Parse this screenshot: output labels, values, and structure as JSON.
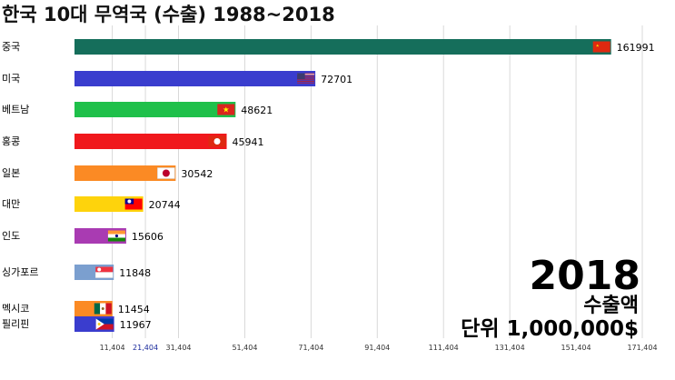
{
  "chart_data": {
    "type": "bar",
    "orientation": "horizontal",
    "title": "한국 10대 무역국 (수출) 1988~2018",
    "year": "2018",
    "metric": "수출액",
    "unit": "단위 1,000,000$",
    "categories": [
      "중국",
      "미국",
      "베트남",
      "홍콩",
      "일본",
      "대만",
      "인도",
      "싱가포르",
      "멕시코",
      "필리핀"
    ],
    "values": [
      161991,
      72701,
      48621,
      45941,
      30542,
      20744,
      15606,
      11848,
      11454,
      11967
    ],
    "bar_colors": [
      "#156e5b",
      "#3a3dce",
      "#1fc04a",
      "#f0181c",
      "#fb8a24",
      "#fed30c",
      "#a93bb2",
      "#7b9fcf",
      "#fb8a24",
      "#3a3dce"
    ],
    "flags": [
      "china-flag",
      "usa-flag",
      "vietnam-flag",
      "hongkong-flag",
      "japan-flag",
      "taiwan-flag",
      "india-flag",
      "singapore-flag",
      "mexico-flag",
      "philippines-flag"
    ],
    "xlim": [
      0,
      172500
    ],
    "xticks": [
      11404,
      21404,
      31404,
      51404,
      71404,
      91404,
      111404,
      131404,
      151404,
      171404
    ],
    "xtick_labels": [
      "11,404",
      "21,404",
      "31,404",
      "51,404",
      "71,404",
      "91,404",
      "111,404",
      "131,404",
      "151,404",
      "171,404"
    ],
    "xtick_colors": [
      "#333333",
      "#1a2a9c",
      "#333333",
      "#333333",
      "#333333",
      "#333333",
      "#333333",
      "#333333",
      "#333333",
      "#333333"
    ],
    "grid": true,
    "legend": "none"
  }
}
